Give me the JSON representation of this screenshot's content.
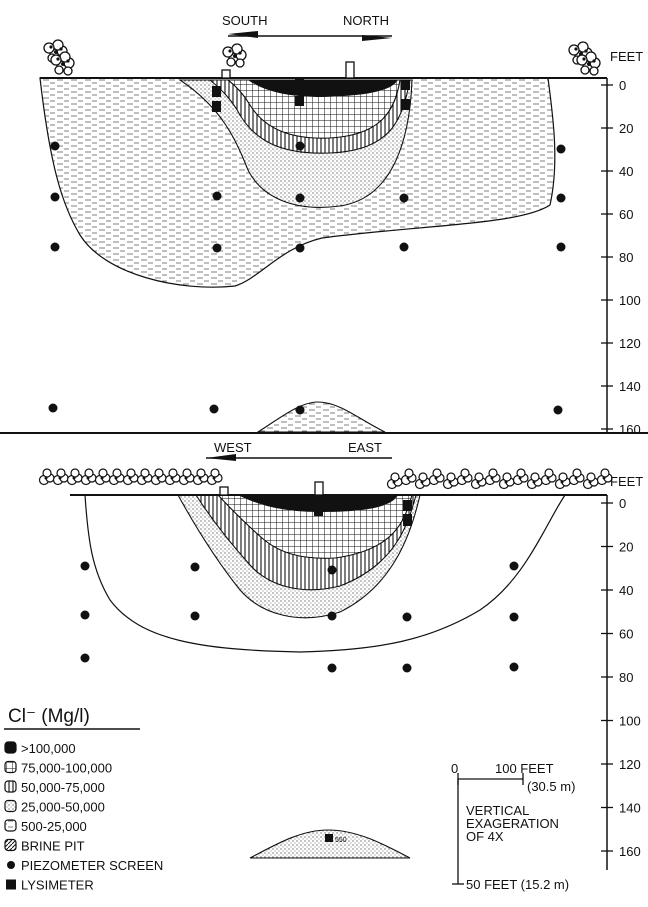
{
  "top_section": {
    "direction_left": "SOUTH",
    "direction_right": "NORTH",
    "axis_unit": "FEET",
    "depth_ticks": [
      "0",
      "20",
      "40",
      "60",
      "80",
      "100",
      "120",
      "140",
      "160"
    ]
  },
  "bottom_section": {
    "direction_left": "WEST",
    "direction_right": "EAST",
    "axis_unit": "FEET",
    "depth_ticks": [
      "0",
      "20",
      "40",
      "60",
      "80",
      "100",
      "120",
      "140",
      "160"
    ],
    "sample_label": "550"
  },
  "legend": {
    "title": "Cl⁻ (Mg/l)",
    "items": [
      {
        "symbol": "solid",
        "label": ">100,000"
      },
      {
        "symbol": "grid",
        "label": "75,000-100,000"
      },
      {
        "symbol": "vertical",
        "label": "50,000-75,000"
      },
      {
        "symbol": "dots",
        "label": "25,000-50,000"
      },
      {
        "symbol": "dashes",
        "label": "500-25,000"
      },
      {
        "symbol": "diagonal",
        "label": "BRINE PIT"
      },
      {
        "symbol": "circle",
        "label": "PIEZOMETER SCREEN"
      },
      {
        "symbol": "square",
        "label": "LYSIMETER"
      }
    ]
  },
  "scale": {
    "h_zero": "0",
    "h_label": "100 FEET",
    "h_metric": "(30.5 m)",
    "v_note": [
      "VERTICAL",
      "EXAGERATION",
      "OF 4X"
    ],
    "v_label": "50 FEET (15.2 m)"
  }
}
